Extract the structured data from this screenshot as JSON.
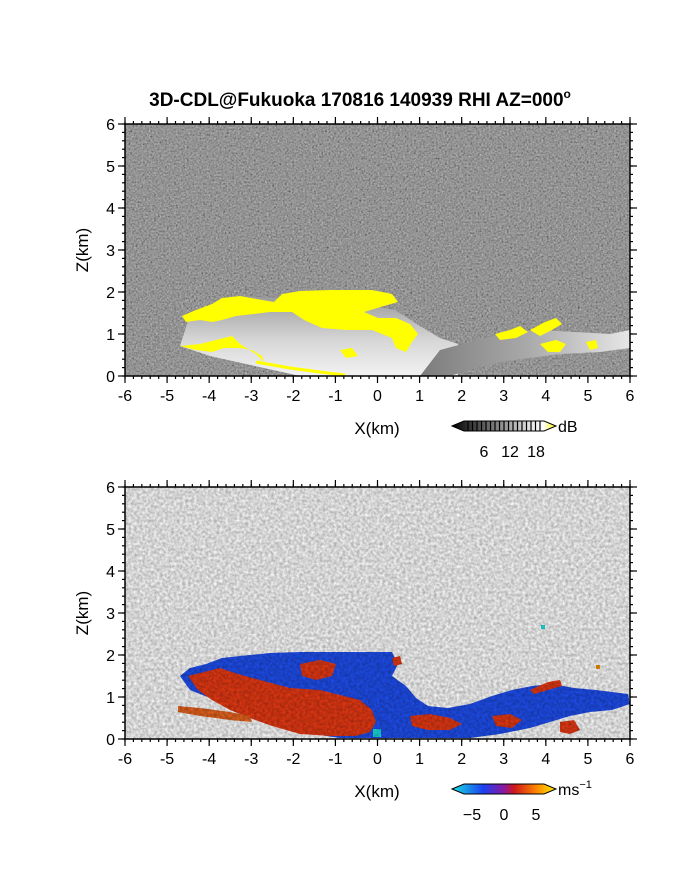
{
  "title": "3D-CDL@Fukuoka 170816 140939 RHI AZ=000",
  "title_degree": "o",
  "chart_data": [
    {
      "panel": "top",
      "type": "heatmap",
      "quantity": "backscatter intensity",
      "xlabel": "X(km)",
      "ylabel": "Z(km)",
      "xlim": [
        -6,
        6
      ],
      "ylim": [
        0,
        6
      ],
      "xticks": [
        "-6",
        "-5",
        "-4",
        "-3",
        "-2",
        "-1",
        "0",
        "1",
        "2",
        "3",
        "4",
        "5",
        "6"
      ],
      "yticks": [
        "0",
        "1",
        "2",
        "3",
        "4",
        "5",
        "6"
      ],
      "background": "noise (dark gray)",
      "colorbar": {
        "unit": "dB",
        "ticks": [
          "6",
          "12",
          "18"
        ],
        "colors": [
          "#000000",
          "#ffffff",
          "#ffff00"
        ]
      },
      "features": {
        "saturated_layer_color": "#ffff00",
        "cloud_top_km": 2.0,
        "strong_echo_x_range_km": [
          -4.7,
          0.6
        ],
        "weak_layer_x_range_km": [
          0.6,
          6.0
        ]
      }
    },
    {
      "panel": "bottom",
      "type": "heatmap",
      "quantity": "radial velocity",
      "xlabel": "X(km)",
      "ylabel": "Z(km)",
      "xlim": [
        -6,
        6
      ],
      "ylim": [
        0,
        6
      ],
      "xticks": [
        "-6",
        "-5",
        "-4",
        "-3",
        "-2",
        "-1",
        "0",
        "1",
        "2",
        "3",
        "4",
        "5",
        "6"
      ],
      "yticks": [
        "0",
        "1",
        "2",
        "3",
        "4",
        "5",
        "6"
      ],
      "background": "white",
      "colorbar": {
        "unit": "ms",
        "unit_exponent": "−1",
        "ticks": [
          "−5",
          "0",
          "5"
        ],
        "colors": [
          "#18e0e0",
          "#1a40f0",
          "#d01818",
          "#ff8a00",
          "#ffee00"
        ]
      },
      "features": {
        "approaching_color": "#1f4ff0",
        "receding_color": "#e83a14",
        "echo_top_km": 2.0,
        "echo_x_range_km": [
          -4.7,
          6.0
        ]
      }
    }
  ]
}
